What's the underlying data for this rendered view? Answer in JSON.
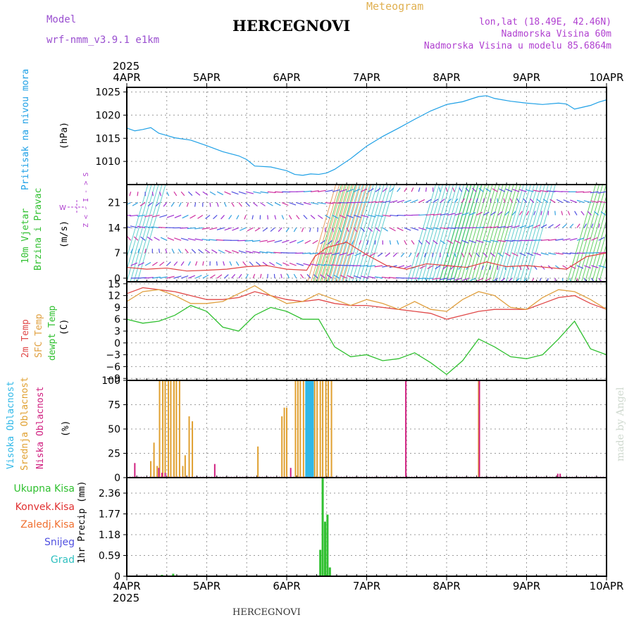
{
  "header": {
    "model_label": "Model",
    "model_name": "wrf-nmm_v3.9.1 e1km",
    "title": "HERCEGNOVI",
    "meteogram_label": "Meteogram",
    "coords": "lon,lat (18.49E, 42.46N)",
    "altitude": "Nadmorska Visina 60m",
    "model_altitude": "Nadmorska Visina u modelu 85.6864m"
  },
  "axis": {
    "year": "2025",
    "dates": [
      "4APR",
      "5APR",
      "6APR",
      "7APR",
      "8APR",
      "9APR",
      "10APR"
    ]
  },
  "footer": {
    "station": "HERCEGNOVI",
    "credit": "made by Angel"
  },
  "panel_labels": {
    "pressure": {
      "label": "Pritisak na nivou mora",
      "unit": "(hPa)"
    },
    "wind": {
      "label1": "10m Vjetar",
      "label2": "Brzina i Pravac",
      "unit": "(m/s)",
      "compass": "Z < - I - > S"
    },
    "temp": {
      "t2m": "2m Temp",
      "sfc": "SFC Temp",
      "dew": "dewpt Temp",
      "unit": "(C)"
    },
    "cloud": {
      "high": "Visoka Oblacnost",
      "mid": "Srednja Oblacnost",
      "low": "Niska Oblacnost",
      "unit": "(%)"
    },
    "precip": {
      "unit": "1hr Precip (mm)",
      "legend": [
        "Ukupna Kisa",
        "Konvek.Kisa",
        "Zaledj.Kisa",
        "Snijeg",
        "Grad"
      ]
    }
  },
  "colors": {
    "pressure": "#1ea0e6",
    "temp2m": "#e04848",
    "sfc": "#e0a040",
    "dew": "#30c030",
    "cloud_high": "#30b8e8",
    "cloud_mid": "#e0a030",
    "cloud_low": "#d02080",
    "precip_total": "#30c030",
    "precip_conv": "#e03030",
    "precip_frz": "#f07030",
    "precip_snow": "#5050e0",
    "precip_hail": "#30c0c0"
  },
  "chart_data": [
    {
      "type": "line",
      "title": "Pritisak na nivou mora",
      "ylabel": "(hPa)",
      "ylim": [
        1005,
        1026
      ],
      "yticks": [
        1010,
        1015,
        1020,
        1025
      ],
      "x_unit": "days since 4APR 00z",
      "x": [
        0,
        0.1,
        0.2,
        0.3,
        0.4,
        0.5,
        0.6,
        0.8,
        1.0,
        1.2,
        1.4,
        1.5,
        1.6,
        1.8,
        1.9,
        2.0,
        2.1,
        2.2,
        2.3,
        2.4,
        2.5,
        2.6,
        2.8,
        3.0,
        3.2,
        3.4,
        3.6,
        3.8,
        4.0,
        4.2,
        4.4,
        4.5,
        4.6,
        4.8,
        5.0,
        5.2,
        5.4,
        5.5,
        5.6,
        5.7,
        5.8,
        5.9,
        6.0
      ],
      "series": [
        {
          "name": "Pritisak na nivou mora",
          "values": [
            1017.2,
            1016.6,
            1016.9,
            1017.3,
            1016.1,
            1015.6,
            1015.1,
            1014.6,
            1013.4,
            1012.1,
            1011.2,
            1010.4,
            1009.0,
            1008.8,
            1008.4,
            1008.0,
            1007.2,
            1007.0,
            1007.3,
            1007.2,
            1007.5,
            1008.3,
            1010.6,
            1013.3,
            1015.4,
            1017.2,
            1019.1,
            1020.9,
            1022.3,
            1022.9,
            1024.0,
            1024.2,
            1023.6,
            1023.0,
            1022.6,
            1022.3,
            1022.6,
            1022.4,
            1021.3,
            1021.7,
            1022.1,
            1022.8,
            1023.3
          ]
        }
      ]
    },
    {
      "type": "line",
      "title": "10m Vjetar Brzina i Pravac",
      "ylabel": "(m/s)",
      "ylim": [
        -1,
        26
      ],
      "yticks": [
        0,
        7,
        14,
        21
      ],
      "x_unit": "days since 4APR 00z",
      "x": [
        0,
        0.25,
        0.5,
        0.75,
        1.0,
        1.25,
        1.5,
        1.75,
        2.0,
        2.25,
        2.35,
        2.5,
        2.75,
        3.0,
        3.25,
        3.5,
        3.75,
        4.0,
        4.25,
        4.5,
        4.75,
        5.0,
        5.25,
        5.5,
        5.75,
        6.0
      ],
      "series": [
        {
          "name": "10m wind speed",
          "values": [
            3.0,
            2.5,
            2.8,
            2.0,
            2.2,
            2.5,
            3.2,
            3.5,
            2.5,
            2.2,
            6.0,
            8.5,
            10.0,
            6.5,
            3.5,
            2.5,
            4.0,
            3.5,
            3.0,
            4.5,
            3.2,
            3.5,
            3.0,
            2.5,
            6.0,
            7.0
          ]
        }
      ]
    },
    {
      "type": "line",
      "title": "2m Temp / SFC Temp / dewpt Temp",
      "ylabel": "(C)",
      "ylim": [
        -9.5,
        15.5
      ],
      "yticks": [
        -9,
        -6,
        -3,
        0,
        3,
        6,
        9,
        12,
        15
      ],
      "x_unit": "days since 4APR 00z",
      "x": [
        0,
        0.2,
        0.4,
        0.6,
        0.8,
        1.0,
        1.2,
        1.4,
        1.6,
        1.8,
        2.0,
        2.2,
        2.4,
        2.6,
        2.8,
        3.0,
        3.2,
        3.4,
        3.6,
        3.8,
        4.0,
        4.2,
        4.4,
        4.6,
        4.8,
        5.0,
        5.2,
        5.4,
        5.6,
        5.8,
        6.0
      ],
      "series": [
        {
          "name": "2m Temp",
          "values": [
            12.5,
            14.0,
            13.5,
            13.0,
            12.0,
            11.0,
            11.0,
            11.5,
            13.0,
            12.0,
            11.0,
            10.5,
            11.0,
            10.0,
            9.5,
            9.5,
            9.0,
            8.5,
            8.0,
            7.5,
            6.0,
            7.0,
            8.0,
            8.5,
            8.5,
            8.5,
            10.0,
            11.5,
            12.0,
            10.0,
            8.5
          ]
        },
        {
          "name": "SFC Temp",
          "values": [
            10.5,
            13.0,
            13.5,
            12.0,
            10.0,
            10.0,
            10.5,
            12.5,
            14.5,
            12.0,
            10.0,
            10.5,
            12.5,
            11.0,
            9.5,
            11.0,
            10.0,
            8.5,
            10.5,
            8.5,
            8.0,
            11.0,
            13.0,
            12.0,
            9.0,
            8.5,
            11.5,
            13.5,
            13.0,
            11.0,
            8.5
          ]
        },
        {
          "name": "dewpt Temp",
          "values": [
            6.0,
            5.0,
            5.5,
            7.0,
            9.5,
            8.0,
            4.0,
            3.0,
            7.0,
            9.0,
            8.0,
            6.0,
            6.0,
            -1.0,
            -3.5,
            -3.0,
            -4.5,
            -4.0,
            -2.5,
            -5.0,
            -8.0,
            -4.5,
            1.0,
            -1.0,
            -3.5,
            -4.0,
            -3.0,
            1.0,
            5.5,
            -1.5,
            -3.0
          ]
        }
      ]
    },
    {
      "type": "bar",
      "title": "Visoka / Srednja / Niska Oblacnost",
      "ylabel": "(%)",
      "ylim": [
        0,
        100
      ],
      "yticks": [
        0,
        25,
        50,
        75,
        100
      ],
      "x_unit": "days since 4APR 00z",
      "series": [
        {
          "name": "Visoka Oblacnost",
          "x": [
            2.24,
            2.25,
            2.26,
            2.27,
            2.28,
            2.29,
            2.3,
            2.31,
            2.32,
            2.33
          ],
          "values": [
            100,
            100,
            100,
            100,
            100,
            100,
            100,
            100,
            100,
            100
          ]
        },
        {
          "name": "Srednja Oblacnost",
          "x": [
            0.3,
            0.34,
            0.38,
            0.41,
            0.45,
            0.48,
            0.52,
            0.55,
            0.59,
            0.62,
            0.66,
            0.7,
            0.73,
            0.78,
            0.82,
            1.64,
            1.94,
            1.97,
            2.0,
            2.11,
            2.14,
            2.17,
            2.21,
            2.35,
            2.38,
            2.42,
            2.45,
            2.49,
            2.52,
            2.56,
            4.4
          ],
          "values": [
            17,
            36,
            12,
            100,
            100,
            100,
            100,
            100,
            100,
            100,
            100,
            12,
            23,
            63,
            58,
            32,
            63,
            72,
            72,
            100,
            100,
            100,
            100,
            100,
            100,
            100,
            100,
            100,
            100,
            100,
            100
          ]
        },
        {
          "name": "Niska Oblacnost",
          "x": [
            0.1,
            0.4,
            0.44,
            0.48,
            1.1,
            2.05,
            3.49,
            4.41,
            5.39,
            5.42
          ],
          "values": [
            15,
            10,
            5,
            5,
            14,
            10,
            100,
            100,
            4,
            4
          ]
        }
      ]
    },
    {
      "type": "bar",
      "title": "1hr Precip",
      "ylabel": "1hr Precip (mm)",
      "ylim": [
        0,
        2.8
      ],
      "yticks": [
        0,
        0.59,
        1.18,
        1.77,
        2.36
      ],
      "x_unit": "days since 4APR 00z",
      "series": [
        {
          "name": "Ukupna Kisa",
          "x": [
            0.44,
            0.58,
            2.42,
            2.45,
            2.48,
            2.51,
            2.54
          ],
          "values": [
            0.04,
            0.07,
            0.75,
            2.9,
            1.55,
            1.75,
            0.25
          ]
        }
      ]
    }
  ]
}
